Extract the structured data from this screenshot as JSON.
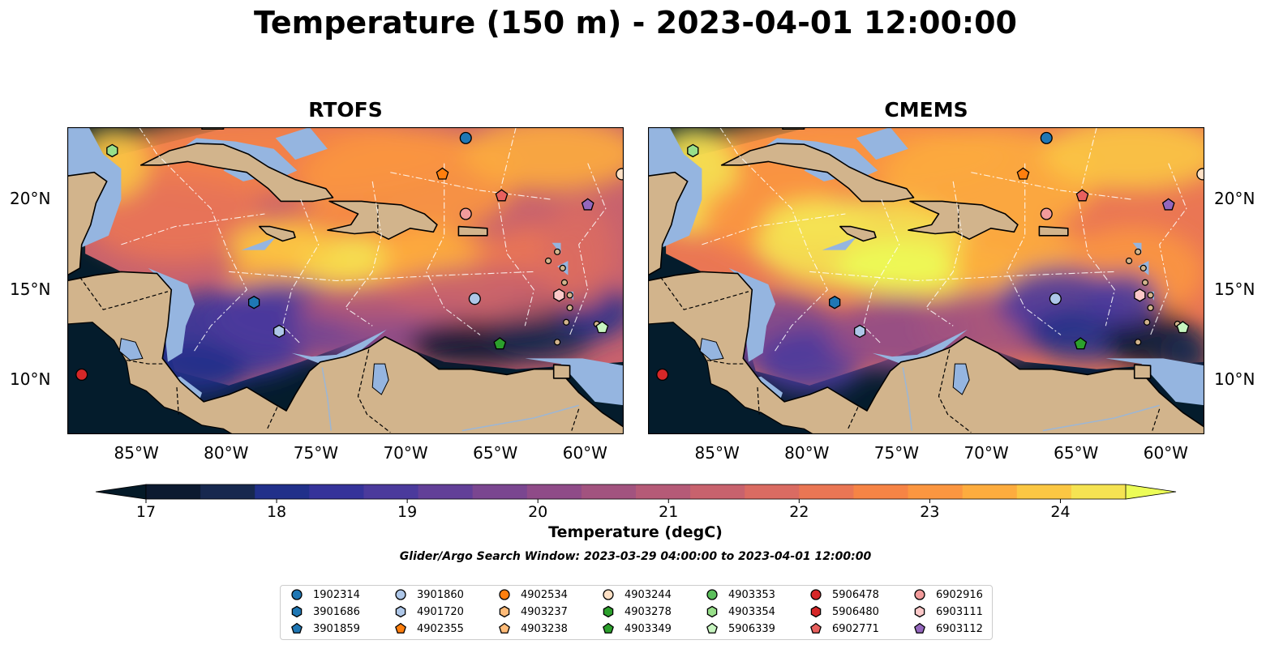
{
  "title": "Temperature (150 m) - 2023-04-01 12:00:00",
  "panels": [
    {
      "title": "RTOFS"
    },
    {
      "title": "CMEMS"
    }
  ],
  "map": {
    "lon_range": [
      -89,
      -58
    ],
    "lat_range": [
      7,
      24
    ],
    "lon_ticks": [
      "85°W",
      "80°W",
      "75°W",
      "70°W",
      "65°W",
      "60°W"
    ],
    "lat_ticks": [
      "20°N",
      "15°N",
      "10°N"
    ]
  },
  "colorbar": {
    "label": "Temperature (degC)",
    "min": 17,
    "max": 24.5,
    "extend": "both",
    "ticks": [
      "17",
      "18",
      "19",
      "20",
      "21",
      "22",
      "23",
      "24"
    ],
    "levels_colors": [
      "#0c1a30",
      "#17284f",
      "#21308a",
      "#35339a",
      "#4b3a9c",
      "#623f98",
      "#7a4690",
      "#8f4b88",
      "#a2537f",
      "#b55a77",
      "#c8626d",
      "#da6b62",
      "#ea7654",
      "#f68445",
      "#fb9640",
      "#fdac3e",
      "#fbc743",
      "#f5e352"
    ],
    "over_color": "#ecfc57",
    "under_color": "#041a28"
  },
  "search_window": "Glider/Argo Search Window: 2023-03-29 04:00:00 to 2023-04-01 12:00:00",
  "legend": [
    {
      "id": "1902314",
      "marker": "circle",
      "color": "#1f77b4"
    },
    {
      "id": "3901686",
      "marker": "hexagon",
      "color": "#1f77b4"
    },
    {
      "id": "3901859",
      "marker": "pentagon",
      "color": "#1f77b4"
    },
    {
      "id": "3901860",
      "marker": "circle",
      "color": "#aec7e8"
    },
    {
      "id": "4901720",
      "marker": "hexagon",
      "color": "#aec7e8"
    },
    {
      "id": "4902355",
      "marker": "pentagon",
      "color": "#ff7f0e"
    },
    {
      "id": "4902534",
      "marker": "circle",
      "color": "#ff7f0e"
    },
    {
      "id": "4903237",
      "marker": "hexagon",
      "color": "#ffbb78"
    },
    {
      "id": "4903238",
      "marker": "pentagon",
      "color": "#ffbb78"
    },
    {
      "id": "4903244",
      "marker": "circle",
      "color": "#fde0c5"
    },
    {
      "id": "4903278",
      "marker": "hexagon",
      "color": "#2ca02c"
    },
    {
      "id": "4903349",
      "marker": "pentagon",
      "color": "#2ca02c"
    },
    {
      "id": "4903353",
      "marker": "circle",
      "color": "#5bbf5b"
    },
    {
      "id": "4903354",
      "marker": "hexagon",
      "color": "#98df8a"
    },
    {
      "id": "5906339",
      "marker": "pentagon",
      "color": "#c7f5c0"
    },
    {
      "id": "5906478",
      "marker": "circle",
      "color": "#d62728"
    },
    {
      "id": "5906480",
      "marker": "hexagon",
      "color": "#d62728"
    },
    {
      "id": "6902771",
      "marker": "pentagon",
      "color": "#e8605e"
    },
    {
      "id": "6902916",
      "marker": "circle",
      "color": "#f29b9b"
    },
    {
      "id": "6903111",
      "marker": "hexagon",
      "color": "#fcc9c9"
    },
    {
      "id": "6903112",
      "marker": "pentagon",
      "color": "#9467bd"
    }
  ],
  "floats": [
    {
      "id": "5906478",
      "lon": -88.2,
      "lat": 10.3
    },
    {
      "id": "3901686",
      "lon": -78.6,
      "lat": 14.3
    },
    {
      "id": "4901720",
      "lon": -77.2,
      "lat": 12.7
    },
    {
      "id": "1902314",
      "lon": -66.8,
      "lat": 23.4
    },
    {
      "id": "4902355",
      "lon": -68.1,
      "lat": 21.4
    },
    {
      "id": "6903112",
      "lon": -60.0,
      "lat": 19.7
    },
    {
      "id": "6902916",
      "lon": -66.8,
      "lat": 19.2
    },
    {
      "id": "6902771",
      "lon": -64.8,
      "lat": 20.2
    },
    {
      "id": "3901860",
      "lon": -66.3,
      "lat": 14.5
    },
    {
      "id": "6903111",
      "lon": -61.6,
      "lat": 14.7
    },
    {
      "id": "4903349",
      "lon": -64.9,
      "lat": 12.0
    },
    {
      "id": "5906339",
      "lon": -59.2,
      "lat": 12.9
    },
    {
      "id": "4903354",
      "lon": -86.5,
      "lat": 22.7
    },
    {
      "id": "4903244",
      "lon": -58.1,
      "lat": 21.4
    }
  ]
}
